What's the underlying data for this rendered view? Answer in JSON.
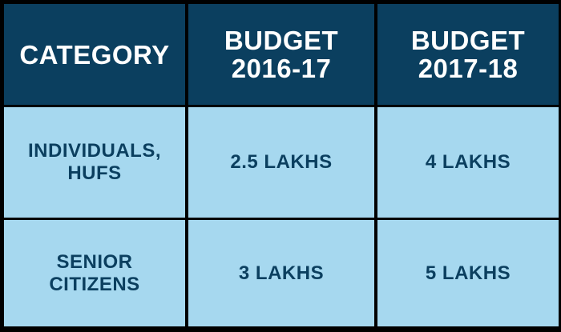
{
  "table": {
    "header": [
      "CATEGORY",
      "BUDGET\n2016-17",
      "BUDGET\n2017-18"
    ],
    "rows": [
      [
        "INDIVIDUALS,\nHUFS",
        "2.5 LAKHS",
        "4 LAKHS"
      ],
      [
        "SENIOR\nCITIZENS",
        "3 LAKHS",
        "5 LAKHS"
      ]
    ]
  }
}
